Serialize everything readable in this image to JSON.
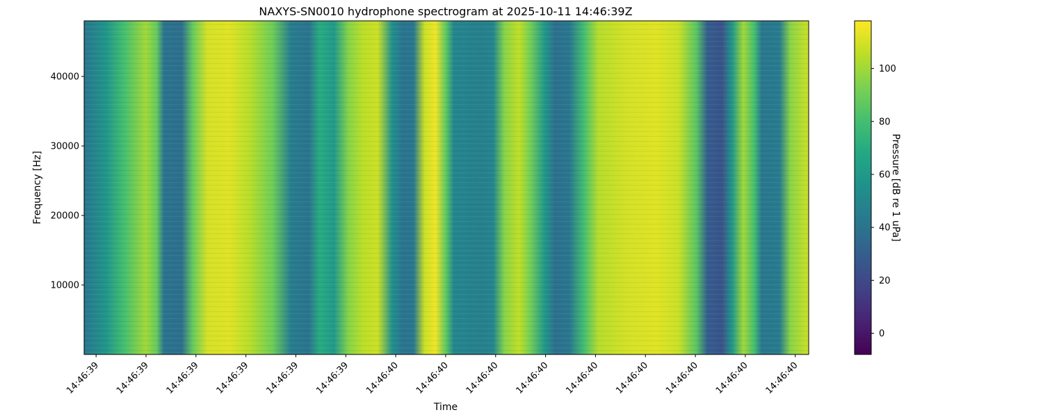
{
  "chart_data": {
    "type": "heatmap",
    "title": "NAXYS-SN0010 hydrophone spectrogram at 2025-10-11 14:46:39Z",
    "xlabel": "Time",
    "ylabel": "Frequency [Hz]",
    "x_tick_labels": [
      "14:46:39",
      "14:46:39",
      "14:46:39",
      "14:46:39",
      "14:46:39",
      "14:46:39",
      "14:46:40",
      "14:46:40",
      "14:46:40",
      "14:46:40",
      "14:46:40",
      "14:46:40",
      "14:46:40",
      "14:46:40",
      "14:46:40"
    ],
    "y_ticks": [
      10000,
      20000,
      30000,
      40000
    ],
    "y_tick_labels": [
      "10000",
      "20000",
      "30000",
      "40000"
    ],
    "ylim": [
      0,
      48000
    ],
    "colorbar": {
      "label": "Pressure [dB re 1 uPa]",
      "range": [
        -8,
        118
      ],
      "ticks": [
        0,
        20,
        40,
        60,
        80,
        100
      ],
      "tick_labels": [
        "0",
        "20",
        "40",
        "60",
        "80",
        "100"
      ],
      "colormap": "viridis"
    },
    "column_profile_db": [
      {
        "t": 0.0,
        "db": 42
      },
      {
        "t": 0.03,
        "db": 58
      },
      {
        "t": 0.055,
        "db": 80
      },
      {
        "t": 0.085,
        "db": 100
      },
      {
        "t": 0.1,
        "db": 88
      },
      {
        "t": 0.11,
        "db": 40
      },
      {
        "t": 0.135,
        "db": 38
      },
      {
        "t": 0.15,
        "db": 88
      },
      {
        "t": 0.17,
        "db": 110
      },
      {
        "t": 0.2,
        "db": 112
      },
      {
        "t": 0.23,
        "db": 104
      },
      {
        "t": 0.26,
        "db": 90
      },
      {
        "t": 0.285,
        "db": 45
      },
      {
        "t": 0.31,
        "db": 40
      },
      {
        "t": 0.325,
        "db": 70
      },
      {
        "t": 0.345,
        "db": 60
      },
      {
        "t": 0.365,
        "db": 95
      },
      {
        "t": 0.385,
        "db": 105
      },
      {
        "t": 0.405,
        "db": 108
      },
      {
        "t": 0.425,
        "db": 55
      },
      {
        "t": 0.44,
        "db": 40
      },
      {
        "t": 0.455,
        "db": 42
      },
      {
        "t": 0.47,
        "db": 108
      },
      {
        "t": 0.485,
        "db": 115
      },
      {
        "t": 0.5,
        "db": 85
      },
      {
        "t": 0.51,
        "db": 50
      },
      {
        "t": 0.55,
        "db": 46
      },
      {
        "t": 0.565,
        "db": 50
      },
      {
        "t": 0.58,
        "db": 95
      },
      {
        "t": 0.6,
        "db": 106
      },
      {
        "t": 0.615,
        "db": 92
      },
      {
        "t": 0.635,
        "db": 60
      },
      {
        "t": 0.65,
        "db": 38
      },
      {
        "t": 0.67,
        "db": 42
      },
      {
        "t": 0.69,
        "db": 80
      },
      {
        "t": 0.71,
        "db": 104
      },
      {
        "t": 0.75,
        "db": 110
      },
      {
        "t": 0.79,
        "db": 112
      },
      {
        "t": 0.82,
        "db": 108
      },
      {
        "t": 0.845,
        "db": 85
      },
      {
        "t": 0.86,
        "db": 30
      },
      {
        "t": 0.88,
        "db": 24
      },
      {
        "t": 0.895,
        "db": 60
      },
      {
        "t": 0.91,
        "db": 100
      },
      {
        "t": 0.925,
        "db": 80
      },
      {
        "t": 0.935,
        "db": 42
      },
      {
        "t": 0.96,
        "db": 44
      },
      {
        "t": 0.975,
        "db": 96
      },
      {
        "t": 1.0,
        "db": 108
      }
    ],
    "grid": false
  }
}
